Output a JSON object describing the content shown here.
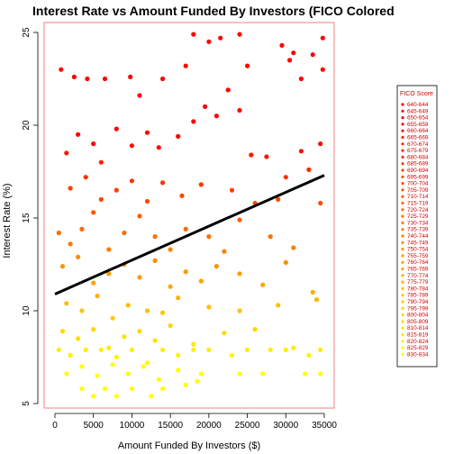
{
  "chart_data": {
    "type": "scatter",
    "title": "Interest Rate vs Amount Funded By Investors (FICO Colored",
    "xlabel": "Amount Funded By Investors ($)",
    "ylabel": "Interest Rate (%)",
    "xlim": [
      0,
      35000
    ],
    "ylim": [
      5,
      25
    ],
    "x_ticks": [
      0,
      5000,
      10000,
      15000,
      20000,
      25000,
      30000,
      35000
    ],
    "x_tick_labels": [
      "0",
      "5000",
      "10000",
      "15000",
      "20000",
      "25000",
      "30000",
      "35000"
    ],
    "y_ticks": [
      5,
      10,
      15,
      20,
      25
    ],
    "y_tick_labels": [
      "5",
      "10",
      "15",
      "20",
      "25"
    ],
    "grid": false,
    "legend": {
      "title": "FICO Score",
      "position": "right",
      "entries": [
        "640-644",
        "645-649",
        "650-654",
        "655-659",
        "660-664",
        "665-669",
        "670-674",
        "675-679",
        "680-684",
        "685-689",
        "690-694",
        "695-699",
        "700-704",
        "705-709",
        "710-714",
        "715-719",
        "720-724",
        "725-729",
        "730-734",
        "735-739",
        "740-744",
        "745-749",
        "750-754",
        "755-759",
        "760-764",
        "765-769",
        "770-774",
        "775-779",
        "780-784",
        "785-789",
        "790-794",
        "795-799",
        "800-804",
        "805-809",
        "810-814",
        "815-819",
        "820-824",
        "825-829",
        "830-834"
      ]
    },
    "colors": {
      "low_fico": "#ff0000",
      "high_fico": "#ffff00",
      "frame": "#f08080",
      "fit_line": "#000000"
    },
    "regression_line": {
      "x": [
        0,
        35000
      ],
      "y": [
        10.9,
        17.3
      ]
    },
    "series": [
      {
        "values": [
          [
            800,
            23.0
          ],
          [
            2500,
            22.6
          ],
          [
            4200,
            22.5
          ],
          [
            6500,
            22.5
          ],
          [
            9800,
            22.6
          ],
          [
            11000,
            21.6
          ],
          [
            14000,
            22.5
          ],
          [
            17000,
            23.2
          ],
          [
            18000,
            24.9
          ],
          [
            20000,
            24.5
          ],
          [
            21500,
            24.7
          ],
          [
            24000,
            24.9
          ],
          [
            25000,
            23.2
          ],
          [
            29500,
            24.3
          ],
          [
            30500,
            23.5
          ],
          [
            31000,
            23.9
          ],
          [
            32000,
            22.5
          ],
          [
            33500,
            23.8
          ],
          [
            34800,
            24.7
          ],
          [
            34800,
            23.0
          ],
          [
            1500,
            18.5
          ],
          [
            3000,
            19.5
          ],
          [
            5000,
            19.0
          ],
          [
            6000,
            18.0
          ],
          [
            8000,
            19.8
          ],
          [
            10000,
            18.9
          ],
          [
            12000,
            19.6
          ],
          [
            13500,
            18.8
          ],
          [
            16000,
            19.4
          ],
          [
            18000,
            20.2
          ],
          [
            19500,
            21.0
          ],
          [
            21000,
            20.5
          ],
          [
            22500,
            21.9
          ],
          [
            24000,
            20.8
          ],
          [
            25500,
            18.4
          ],
          [
            27500,
            18.3
          ],
          [
            30000,
            17.2
          ],
          [
            32000,
            18.6
          ],
          [
            34500,
            19.0
          ],
          [
            2000,
            16.6
          ],
          [
            4000,
            17.2
          ],
          [
            6000,
            16.0
          ],
          [
            8000,
            16.5
          ],
          [
            10000,
            17.0
          ],
          [
            12000,
            15.9
          ],
          [
            14000,
            16.9
          ],
          [
            16500,
            16.2
          ],
          [
            19000,
            16.8
          ],
          [
            23000,
            16.5
          ],
          [
            26000,
            15.8
          ],
          [
            29000,
            16.0
          ],
          [
            33000,
            17.6
          ],
          [
            500,
            14.2
          ],
          [
            2000,
            13.6
          ],
          [
            3500,
            14.4
          ],
          [
            5000,
            15.3
          ],
          [
            7000,
            13.3
          ],
          [
            9000,
            14.2
          ],
          [
            11000,
            15.1
          ],
          [
            13000,
            14.0
          ],
          [
            15000,
            13.3
          ],
          [
            17000,
            14.4
          ],
          [
            20000,
            14.0
          ],
          [
            22000,
            13.2
          ],
          [
            24000,
            14.9
          ],
          [
            28000,
            14.0
          ],
          [
            31000,
            13.4
          ],
          [
            34500,
            15.8
          ],
          [
            1000,
            12.4
          ],
          [
            3000,
            12.9
          ],
          [
            5000,
            11.5
          ],
          [
            7000,
            12.0
          ],
          [
            9000,
            12.5
          ],
          [
            11000,
            11.8
          ],
          [
            13000,
            12.7
          ],
          [
            15000,
            11.3
          ],
          [
            17000,
            12.1
          ],
          [
            19000,
            11.6
          ],
          [
            21000,
            12.4
          ],
          [
            24000,
            12.0
          ],
          [
            27000,
            11.4
          ],
          [
            30000,
            12.6
          ],
          [
            33500,
            11.0
          ],
          [
            1500,
            10.4
          ],
          [
            3500,
            10.0
          ],
          [
            5500,
            10.8
          ],
          [
            7500,
            9.6
          ],
          [
            9500,
            10.3
          ],
          [
            12000,
            10.0
          ],
          [
            14000,
            9.9
          ],
          [
            16000,
            10.7
          ],
          [
            20000,
            10.2
          ],
          [
            24000,
            10.0
          ],
          [
            29000,
            10.3
          ],
          [
            34000,
            10.6
          ],
          [
            1000,
            8.9
          ],
          [
            3000,
            8.5
          ],
          [
            5000,
            9.0
          ],
          [
            7000,
            8.0
          ],
          [
            9000,
            8.6
          ],
          [
            11000,
            8.9
          ],
          [
            13000,
            8.4
          ],
          [
            15000,
            9.2
          ],
          [
            18000,
            8.2
          ],
          [
            22000,
            8.8
          ],
          [
            26000,
            9.0
          ],
          [
            31000,
            8.0
          ],
          [
            500,
            7.9
          ],
          [
            2000,
            7.6
          ],
          [
            4000,
            7.9
          ],
          [
            6000,
            7.9
          ],
          [
            8000,
            7.5
          ],
          [
            10000,
            7.9
          ],
          [
            12000,
            7.2
          ],
          [
            14000,
            7.9
          ],
          [
            16000,
            7.6
          ],
          [
            18000,
            7.9
          ],
          [
            20000,
            7.9
          ],
          [
            23000,
            7.6
          ],
          [
            25000,
            7.9
          ],
          [
            28000,
            7.9
          ],
          [
            30000,
            7.9
          ],
          [
            33000,
            7.6
          ],
          [
            34500,
            7.9
          ],
          [
            1500,
            6.6
          ],
          [
            3500,
            7.0
          ],
          [
            5500,
            6.5
          ],
          [
            7500,
            7.1
          ],
          [
            9500,
            6.6
          ],
          [
            11500,
            7.0
          ],
          [
            13500,
            6.3
          ],
          [
            16000,
            6.8
          ],
          [
            19000,
            6.6
          ],
          [
            24000,
            6.6
          ],
          [
            27000,
            6.6
          ],
          [
            32500,
            6.6
          ],
          [
            34500,
            6.6
          ],
          [
            3500,
            5.8
          ],
          [
            5000,
            5.4
          ],
          [
            6500,
            5.8
          ],
          [
            8000,
            5.4
          ],
          [
            10000,
            5.8
          ],
          [
            12500,
            5.4
          ],
          [
            14000,
            5.8
          ],
          [
            17000,
            6.0
          ],
          [
            18500,
            6.2
          ]
        ]
      }
    ]
  }
}
